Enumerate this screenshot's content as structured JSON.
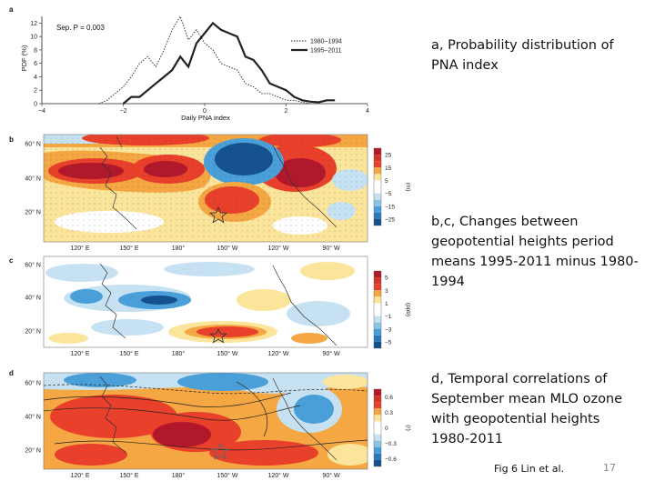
{
  "captions": {
    "a": "a, Probability distribution of PNA index",
    "bc": "b,c, Changes between geopotential heights period means 1995-2011 minus 1980-1994",
    "d": "d, Temporal correlations of September mean MLO ozone with geopotential heights 1980-2011"
  },
  "credit": "Fig 6 Lin et al.",
  "page_number": "17",
  "chart_data": {
    "type": "line",
    "panel_letter": "a",
    "annotation": "Sep. P = 0.003",
    "xlabel": "Daily PNA index",
    "ylabel": "PDF (%)",
    "xlim": [
      -4,
      4
    ],
    "ylim": [
      0,
      13
    ],
    "xticks": [
      "−4",
      "−2",
      "0",
      "2",
      "4"
    ],
    "yticks": [
      "0",
      "2",
      "4",
      "6",
      "8",
      "10",
      "12"
    ],
    "series": [
      {
        "name": "1980–1994",
        "style": "dotted",
        "x": [
          -2.6,
          -2.4,
          -2.2,
          -2.0,
          -1.8,
          -1.6,
          -1.4,
          -1.2,
          -1.0,
          -0.8,
          -0.6,
          -0.4,
          -0.2,
          0.0,
          0.2,
          0.4,
          0.6,
          0.8,
          1.0,
          1.2,
          1.4,
          1.6,
          1.8,
          2.0,
          2.2,
          2.4,
          2.6
        ],
        "y": [
          0,
          0.5,
          1.5,
          2.5,
          4,
          6,
          7,
          5.5,
          8,
          11,
          13,
          9.5,
          11,
          9,
          8,
          6,
          5.5,
          5,
          3,
          2.5,
          1.5,
          1.5,
          1,
          0.5,
          0.5,
          0.2,
          0
        ]
      },
      {
        "name": "1995–2011",
        "style": "solid",
        "x": [
          -2.0,
          -1.8,
          -1.6,
          -1.4,
          -1.2,
          -1.0,
          -0.8,
          -0.6,
          -0.4,
          -0.2,
          0.0,
          0.2,
          0.4,
          0.6,
          0.8,
          1.0,
          1.2,
          1.4,
          1.6,
          1.8,
          2.0,
          2.2,
          2.4,
          2.6,
          2.8,
          3.0,
          3.2
        ],
        "y": [
          0,
          1,
          1,
          2,
          3,
          4,
          5,
          7,
          5.5,
          9,
          10.5,
          12,
          11,
          10.5,
          10,
          7,
          6.5,
          5,
          3,
          2.5,
          2,
          1,
          0.5,
          0.3,
          0.2,
          0.5,
          0.5
        ]
      }
    ]
  },
  "maps": {
    "b": {
      "letter": "b",
      "lat_labels": [
        "60° N",
        "40° N",
        "20° N"
      ],
      "lon_labels": [
        "120° E",
        "150° E",
        "180°",
        "150° W",
        "120° W",
        "90° W"
      ],
      "colorbar_ticks": [
        "25",
        "15",
        "5",
        "−5",
        "−15",
        "−25"
      ],
      "unit": "(m)"
    },
    "c": {
      "letter": "c",
      "lat_labels": [
        "60° N",
        "40° N",
        "20° N"
      ],
      "lon_labels": [
        "120° E",
        "150° E",
        "180°",
        "150° W",
        "120° W",
        "90° W"
      ],
      "colorbar_ticks": [
        "5",
        "3",
        "1",
        "−1",
        "−3",
        "−5"
      ],
      "unit": "(ppb)"
    },
    "d": {
      "letter": "d",
      "lat_labels": [
        "60° N",
        "40° N",
        "20° N"
      ],
      "lon_labels": [
        "120° E",
        "150° E",
        "180°",
        "150° W",
        "120° W",
        "90° W"
      ],
      "colorbar_ticks": [
        "0.6",
        "0.3",
        "0",
        "−0.3",
        "−0.6"
      ],
      "unit": "(r)"
    }
  },
  "colors": {
    "red_dark": "#b2182b",
    "red": "#e8402a",
    "orange": "#f4a742",
    "yellow": "#fbe59a",
    "white": "#ffffff",
    "blue_light": "#c6e2f2",
    "blue": "#4a9fd8",
    "blue_dark": "#15508f"
  }
}
